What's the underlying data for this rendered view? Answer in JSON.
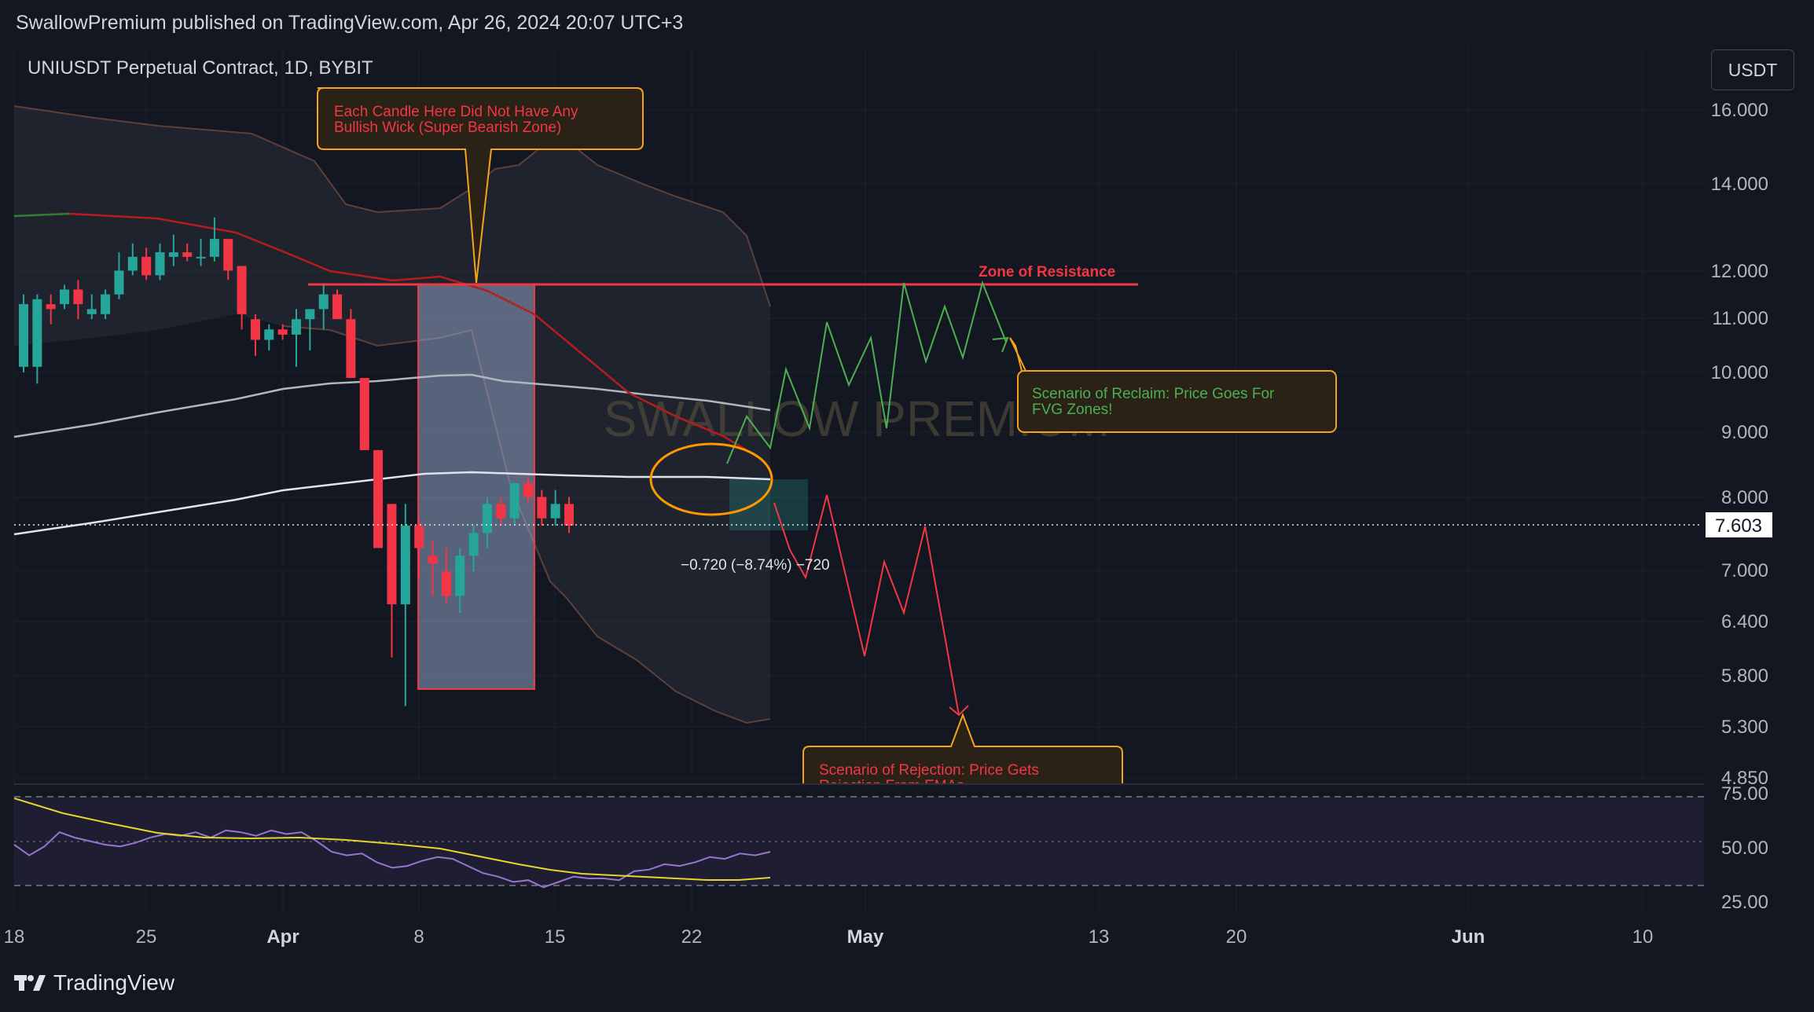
{
  "header": {
    "published_line": "SwallowPremium published on TradingView.com, Apr 26, 2024 20:07 UTC+3"
  },
  "symbol_title": "UNIUSDT Perpetual Contract, 1D, BYBIT",
  "currency_button": "USDT",
  "watermark": "SWALLOW PREMIUM",
  "footer": {
    "brand": "TradingView"
  },
  "annotations": {
    "bearish_zone_note": [
      "Each Candle Here Did Not Have Any",
      "Bullish Wick (Super Bearish Zone)"
    ],
    "resistance_label": "Zone of Resistance",
    "reclaim_note": [
      "Scenario of Reclaim: Price Goes For",
      "FVG Zones!"
    ],
    "rejection_note": [
      "Scenario of Rejection: Price Gets",
      "Rejection From EMAs"
    ],
    "measure_label": "−0.720 (−8.74%) −720",
    "current_price": "7.603"
  },
  "colors": {
    "background": "#131722",
    "bull": "#26a69a",
    "bear": "#f23645",
    "resistance": "#f23645",
    "note_border": "#f7a21b",
    "reclaim_text": "#4caf50",
    "rsi": "#9575cd",
    "rsi_ma": "#e8d52c"
  },
  "chart_data": [
    {
      "type": "candlestick",
      "title": "UNIUSDT Perpetual Contract, 1D, BYBIT",
      "y_scale": "log",
      "y_ticks": [
        "16.000",
        "14.000",
        "12.000",
        "11.000",
        "10.000",
        "9.000",
        "8.000",
        "7.000",
        "6.400",
        "5.800",
        "5.300",
        "4.850"
      ],
      "x_ticks": [
        "18",
        "25",
        "Apr",
        "8",
        "15",
        "22",
        "May",
        "13",
        "20",
        "Jun",
        "10"
      ],
      "current_price": 7.603,
      "candles": [
        {
          "d": "Mar 19",
          "o": 10.1,
          "h": 11.5,
          "l": 10.0,
          "c": 11.3
        },
        {
          "d": "Mar 20",
          "o": 10.1,
          "h": 11.5,
          "l": 9.8,
          "c": 11.4
        },
        {
          "d": "Mar 21",
          "o": 11.3,
          "h": 11.5,
          "l": 10.9,
          "c": 11.2
        },
        {
          "d": "Mar 22",
          "o": 11.3,
          "h": 11.7,
          "l": 11.2,
          "c": 11.6
        },
        {
          "d": "Mar 23",
          "o": 11.6,
          "h": 11.8,
          "l": 11.0,
          "c": 11.3
        },
        {
          "d": "Mar 24",
          "o": 11.1,
          "h": 11.5,
          "l": 11.0,
          "c": 11.2
        },
        {
          "d": "Mar 25",
          "o": 11.1,
          "h": 11.6,
          "l": 11.0,
          "c": 11.5
        },
        {
          "d": "Mar 26",
          "o": 11.5,
          "h": 12.4,
          "l": 11.4,
          "c": 12.0
        },
        {
          "d": "Mar 27",
          "o": 12.0,
          "h": 12.6,
          "l": 11.9,
          "c": 12.3
        },
        {
          "d": "Mar 28",
          "o": 12.3,
          "h": 12.5,
          "l": 11.8,
          "c": 11.9
        },
        {
          "d": "Mar 29",
          "o": 11.9,
          "h": 12.6,
          "l": 11.8,
          "c": 12.4
        },
        {
          "d": "Mar 30",
          "o": 12.3,
          "h": 12.8,
          "l": 12.1,
          "c": 12.4
        },
        {
          "d": "Mar 31",
          "o": 12.4,
          "h": 12.6,
          "l": 12.2,
          "c": 12.3
        },
        {
          "d": "Apr 1",
          "o": 12.3,
          "h": 12.7,
          "l": 12.1,
          "c": 12.3
        },
        {
          "d": "Apr 2",
          "o": 12.3,
          "h": 13.2,
          "l": 12.2,
          "c": 12.7
        },
        {
          "d": "Apr 3",
          "o": 12.7,
          "h": 12.7,
          "l": 11.8,
          "c": 12.0
        },
        {
          "d": "Apr 4",
          "o": 12.1,
          "h": 12.1,
          "l": 10.8,
          "c": 11.1
        },
        {
          "d": "Apr 5",
          "o": 11.0,
          "h": 11.1,
          "l": 10.3,
          "c": 10.6
        },
        {
          "d": "Apr 6",
          "o": 10.6,
          "h": 10.9,
          "l": 10.4,
          "c": 10.8
        },
        {
          "d": "Apr 7",
          "o": 10.8,
          "h": 10.9,
          "l": 10.6,
          "c": 10.7
        },
        {
          "d": "Apr 8",
          "o": 10.7,
          "h": 11.2,
          "l": 10.1,
          "c": 11.0
        },
        {
          "d": "Apr 9",
          "o": 11.0,
          "h": 11.2,
          "l": 10.4,
          "c": 11.2
        },
        {
          "d": "Apr 10",
          "o": 11.2,
          "h": 11.7,
          "l": 10.8,
          "c": 11.5
        },
        {
          "d": "Apr 11",
          "o": 11.5,
          "h": 11.6,
          "l": 11.0,
          "c": 11.0
        },
        {
          "d": "Apr 12",
          "o": 11.0,
          "h": 11.2,
          "l": 9.9,
          "c": 9.9
        },
        {
          "d": "Apr 13",
          "o": 9.9,
          "h": 9.9,
          "l": 8.7,
          "c": 8.7
        },
        {
          "d": "Apr 14",
          "o": 8.7,
          "h": 8.7,
          "l": 7.3,
          "c": 7.3
        },
        {
          "d": "Apr 15",
          "o": 7.9,
          "h": 7.9,
          "l": 6.0,
          "c": 6.6
        },
        {
          "d": "Apr 16",
          "o": 6.6,
          "h": 7.9,
          "l": 5.5,
          "c": 7.6
        },
        {
          "d": "Apr 17",
          "o": 7.6,
          "h": 7.7,
          "l": 6.9,
          "c": 7.3
        },
        {
          "d": "Apr 18",
          "o": 7.2,
          "h": 7.4,
          "l": 6.7,
          "c": 7.1
        },
        {
          "d": "Apr 19",
          "o": 7.0,
          "h": 7.3,
          "l": 6.6,
          "c": 6.7
        },
        {
          "d": "Apr 20",
          "o": 6.7,
          "h": 7.3,
          "l": 6.5,
          "c": 7.2
        },
        {
          "d": "Apr 21",
          "o": 7.2,
          "h": 7.6,
          "l": 7.0,
          "c": 7.5
        },
        {
          "d": "Apr 22",
          "o": 7.5,
          "h": 8.0,
          "l": 7.3,
          "c": 7.9
        },
        {
          "d": "Apr 23",
          "o": 7.9,
          "h": 8.0,
          "l": 7.6,
          "c": 7.7
        },
        {
          "d": "Apr 24",
          "o": 7.7,
          "h": 8.2,
          "l": 7.6,
          "c": 8.2
        },
        {
          "d": "Apr 25",
          "o": 8.2,
          "h": 8.3,
          "l": 7.9,
          "c": 8.0
        },
        {
          "d": "Apr 26",
          "o": 8.0,
          "h": 8.1,
          "l": 7.6,
          "c": 7.7
        },
        {
          "d": "Apr 27",
          "o": 7.7,
          "h": 8.1,
          "l": 7.6,
          "c": 7.9
        },
        {
          "d": "Apr 28",
          "o": 7.9,
          "h": 8.0,
          "l": 7.5,
          "c": 7.6
        }
      ],
      "resistance_level": 11.6,
      "ema_slow": [
        [
          0,
          8.2
        ],
        [
          10,
          8.5
        ],
        [
          20,
          9.0
        ],
        [
          30,
          9.7
        ],
        [
          40,
          10.3
        ],
        [
          45,
          10.5
        ],
        [
          55,
          11.0
        ],
        [
          65,
          11.5
        ],
        [
          70,
          11.9
        ],
        [
          76,
          12.2
        ],
        [
          86,
          12.5
        ],
        [
          91,
          12.4
        ],
        [
          95,
          12.2
        ],
        [
          100,
          12.1
        ]
      ],
      "rsi": {
        "ticks": [
          "75.00",
          "50.00",
          "25.00"
        ],
        "values": [
          48,
          42,
          47,
          55,
          52,
          50,
          48,
          47,
          49,
          52,
          54,
          53,
          55,
          52,
          56,
          55,
          53,
          56,
          54,
          55,
          50,
          44,
          42,
          43,
          38,
          35,
          36,
          39,
          41,
          40,
          36,
          32,
          30,
          27,
          28,
          24,
          27,
          30,
          29,
          29,
          28,
          33,
          34,
          37,
          36,
          38,
          41,
          40,
          43,
          42,
          44
        ]
      }
    }
  ]
}
